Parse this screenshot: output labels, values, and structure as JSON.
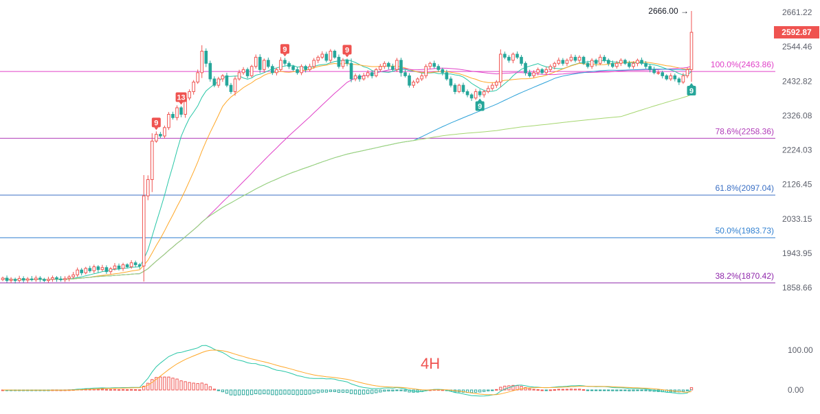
{
  "chart_data": {
    "type": "candlestick",
    "timeframe_label": "4H",
    "price_axis": {
      "ticks": [
        2661.22,
        2544.46,
        2432.82,
        2326.08,
        2224.03,
        2126.45,
        2033.15,
        1943.95,
        1858.66
      ],
      "tick_labels": [
        "2661.22",
        "2544.46",
        "2432.82",
        "2326.08",
        "2224.03",
        "2126.45",
        "2033.15",
        "1943.95",
        "1858.66"
      ],
      "scale": "log"
    },
    "last_price": {
      "value": 2592.87,
      "label": "2592.87",
      "color": "#ef5350"
    },
    "session_high": {
      "value": 2666.0,
      "label": "2666.00 →"
    },
    "fib_levels": [
      {
        "ratio_label": "100.0%(2463.86)",
        "price": 2463.86,
        "color": "#e040c8"
      },
      {
        "ratio_label": "78.6%(2258.36)",
        "price": 2258.36,
        "color": "#b03ab8"
      },
      {
        "ratio_label": "61.8%(2097.04)",
        "price": 2097.04,
        "color": "#3a6fc4"
      },
      {
        "ratio_label": "50.0%(1983.73)",
        "price": 1983.73,
        "color": "#2f7fd0"
      },
      {
        "ratio_label": "38.2%(1870.42)",
        "price": 1870.42,
        "color": "#8e24aa"
      }
    ],
    "candle_closes": [
      1882,
      1876,
      1879,
      1876,
      1881,
      1877,
      1880,
      1878,
      1882,
      1879,
      1876,
      1879,
      1883,
      1880,
      1878,
      1881,
      1885,
      1890,
      1902,
      1895,
      1906,
      1900,
      1910,
      1903,
      1908,
      1898,
      1905,
      1912,
      1906,
      1915,
      1910,
      1920,
      1915,
      1912,
      2095,
      2140,
      2250,
      2270,
      2265,
      2290,
      2330,
      2320,
      2350,
      2330,
      2380,
      2400,
      2430,
      2460,
      2530,
      2490,
      2440,
      2420,
      2440,
      2450,
      2420,
      2400,
      2440,
      2460,
      2470,
      2450,
      2480,
      2510,
      2470,
      2500,
      2480,
      2460,
      2470,
      2500,
      2490,
      2480,
      2470,
      2460,
      2480,
      2470,
      2480,
      2500,
      2510,
      2520,
      2500,
      2530,
      2510,
      2480,
      2500,
      2490,
      2440,
      2450,
      2440,
      2450,
      2460,
      2450,
      2470,
      2480,
      2490,
      2480,
      2470,
      2500,
      2460,
      2450,
      2420,
      2430,
      2440,
      2450,
      2480,
      2490,
      2480,
      2470,
      2460,
      2440,
      2420,
      2400,
      2420,
      2400,
      2390,
      2380,
      2400,
      2390,
      2400,
      2410,
      2420,
      2430,
      2520,
      2510,
      2500,
      2520,
      2510,
      2490,
      2460,
      2450,
      2460,
      2470,
      2460,
      2470,
      2480,
      2490,
      2500,
      2490,
      2500,
      2510,
      2500,
      2510,
      2490,
      2480,
      2500,
      2490,
      2510,
      2500,
      2490,
      2480,
      2490,
      2500,
      2490,
      2480,
      2490,
      2500,
      2490,
      2480,
      2470,
      2460,
      2460,
      2450,
      2440,
      2450,
      2440,
      2430,
      2450,
      2470,
      2592.87
    ],
    "moving_averages": [
      {
        "period": 10,
        "color": "#26c6a6"
      },
      {
        "period": 20,
        "color": "#ffa726"
      },
      {
        "period": 50,
        "color": "#e040c8"
      },
      {
        "period": 100,
        "color": "#29a0d8"
      },
      {
        "period": 150,
        "color": "#a5d66f"
      }
    ],
    "td_markers": [
      {
        "label": "13",
        "color": "#ef5350",
        "candle": 43,
        "side": "top"
      },
      {
        "label": "9",
        "color": "#ef5350",
        "candle": 37,
        "side": "top"
      },
      {
        "label": "9",
        "color": "#ef5350",
        "candle": 68,
        "side": "top"
      },
      {
        "label": "9",
        "color": "#ef5350",
        "candle": 83,
        "side": "top"
      },
      {
        "label": "9",
        "color": "#26a69a",
        "candle": 115,
        "side": "bottom"
      },
      {
        "label": "9",
        "color": "#26a69a",
        "candle": 167,
        "side": "bottom"
      }
    ],
    "macd_axis": {
      "ticks": [
        100,
        0
      ],
      "tick_labels": [
        "100.00",
        "0.00"
      ]
    },
    "colors": {
      "up": "#ef5350",
      "down": "#26a69a",
      "macd_line": "#26c6a6",
      "signal_line": "#ffa726",
      "axis_text": "#5d606b"
    }
  }
}
